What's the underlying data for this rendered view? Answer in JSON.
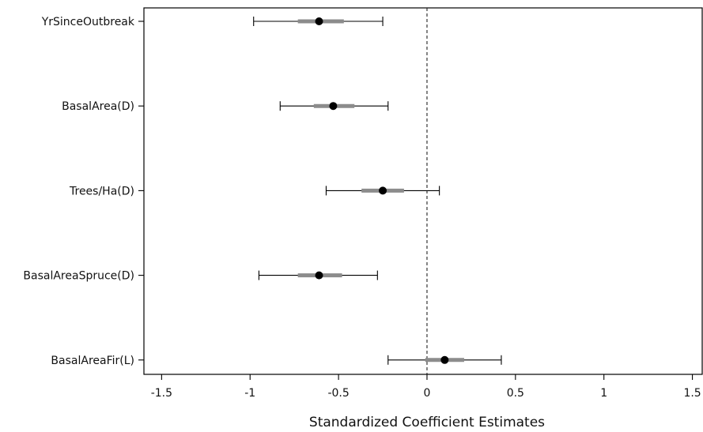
{
  "chart_data": {
    "type": "dot-whisker",
    "title": "",
    "xlabel": "Standardized Coefficient Estimates",
    "ylabel": "",
    "xlim": [
      -1.6,
      1.56
    ],
    "xticks": [
      -1.5,
      -1,
      -0.5,
      0,
      0.5,
      1,
      1.5
    ],
    "xtick_labels": [
      "-1.5",
      "-1",
      "-0.5",
      "0",
      "0.5",
      "1",
      "1.5"
    ],
    "reference_line": 0,
    "grid": false,
    "legend": "none",
    "point_color": "#000000",
    "inner_interval_color": "#8c8c8c",
    "outer_interval_color": "#000000",
    "categories": [
      "YrSinceOutbreak",
      "BasalArea(D)",
      "Trees/Ha(D)",
      "BasalAreaSpruce(D)",
      "BasalAreaFir(L)"
    ],
    "estimates": [
      {
        "label": "YrSinceOutbreak",
        "estimate": -0.61,
        "inner_low": -0.73,
        "inner_high": -0.47,
        "outer_low": -0.98,
        "outer_high": -0.25
      },
      {
        "label": "BasalArea(D)",
        "estimate": -0.53,
        "inner_low": -0.64,
        "inner_high": -0.41,
        "outer_low": -0.83,
        "outer_high": -0.22
      },
      {
        "label": "Trees/Ha(D)",
        "estimate": -0.25,
        "inner_low": -0.37,
        "inner_high": -0.13,
        "outer_low": -0.57,
        "outer_high": 0.07
      },
      {
        "label": "BasalAreaSpruce(D)",
        "estimate": -0.61,
        "inner_low": -0.73,
        "inner_high": -0.48,
        "outer_low": -0.95,
        "outer_high": -0.28
      },
      {
        "label": "BasalAreaFir(L)",
        "estimate": 0.1,
        "inner_low": -0.01,
        "inner_high": 0.21,
        "outer_low": -0.22,
        "outer_high": 0.42
      }
    ]
  }
}
